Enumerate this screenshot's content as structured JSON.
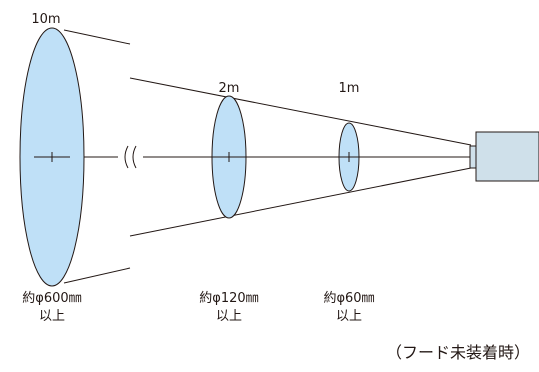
{
  "diagram": {
    "fill_color": "#bfe0f7",
    "stroke_color": "#231815",
    "camera_color": "#cfe0ea",
    "spots": [
      {
        "distance": "10m",
        "size_line1": "約φ600㎜",
        "size_line2": "以上"
      },
      {
        "distance": "2m",
        "size_line1": "約φ120㎜",
        "size_line2": "以上"
      },
      {
        "distance": "1m",
        "size_line1": "約φ60㎜",
        "size_line2": "以上"
      }
    ],
    "break_mark": "((",
    "caption": "（フード未装着時）"
  }
}
